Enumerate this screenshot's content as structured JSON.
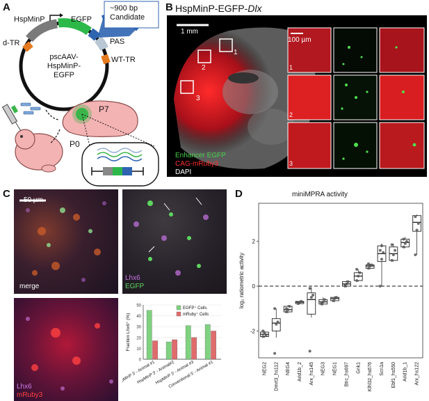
{
  "panels": {
    "A": {
      "label": "A",
      "promoter": "HspMinP",
      "reporter": "EGFP",
      "left_itr": "d-TR",
      "right_itr": "WT-TR",
      "polyA": "PAS",
      "plasmid_lines": [
        "pscAAV-",
        "HspMinP-",
        "EGFP"
      ],
      "candidate_lines": [
        "~900 bp",
        "Candidate"
      ],
      "stage_p0": "P0",
      "stage_p7": "P7",
      "colors": {
        "promoter": "#7a7a7a",
        "reporter": "#2db84a",
        "candidate": "#2f64b0",
        "itr": "#e67a1e",
        "pas": "#b8c7d3"
      }
    },
    "B": {
      "label": "B",
      "title_prefix": "HspMinP-EGFP-",
      "title_italic": "Dlx",
      "scalebar_main": "1 mm",
      "scalebar_inset": "100 µm",
      "roi_labels": [
        "1",
        "2",
        "3"
      ],
      "legend": [
        "Enhancer EGFP",
        "CAG-mRuby3",
        "DAPI"
      ],
      "legend_colors": [
        "#48d048",
        "#ff3030",
        "#ffffff"
      ]
    },
    "C": {
      "label": "C",
      "scalebar": "50 µm",
      "merge_label": "merge",
      "lhx6_label": "Lhx6",
      "egfp_label": "EGFP",
      "mruby_label": "mRuby3",
      "chart_data": {
        "type": "bar",
        "categories": [
          "HspMinP 3' - Animal #1",
          "HspMinP 3' - Animal#2",
          "HspMinP 3' - Animal #3",
          "Conventional 5' - Animal #1"
        ],
        "series": [
          {
            "name": "EGFP⁺ Cells",
            "values": [
              45,
              16,
              31,
              32
            ],
            "color": "#7fd27f"
          },
          {
            "name": "mRuby⁺ Cells",
            "values": [
              17,
              18,
              20,
              26
            ],
            "color": "#e06b6b"
          }
        ],
        "ylabel": "Fraction Lhx6⁺ (%)",
        "ylim": [
          0,
          50
        ],
        "yticks": [
          0,
          10,
          20,
          30,
          40,
          50
        ]
      }
    },
    "D": {
      "label": "D",
      "chart_data": {
        "type": "box",
        "title": "miniMPRA activity",
        "ylabel": "log₂ ratiometric activity",
        "ylim": [
          -3.2,
          3.7
        ],
        "yticks": [
          -2,
          0,
          2
        ],
        "categories": [
          "NEG2",
          "Dmrt3_hs112",
          "NEG4",
          "Arid1b_2",
          "Arx_hs145",
          "NEG3",
          "NEG1",
          "Btrc_hs697",
          "Gnk1",
          "Klhl32_hs676",
          "Scn1a",
          "Ebf1_hs550",
          "Arid1b_1",
          "Arx_hs122"
        ],
        "boxes": [
          {
            "q1": -2.25,
            "median": -2.15,
            "q3": -2.05,
            "whisker_low": -2.3,
            "whisker_high": -2.0,
            "points": [
              -2.25,
              -2.1,
              -2.2,
              -2.0
            ]
          },
          {
            "q1": -2.0,
            "median": -1.65,
            "q3": -1.45,
            "whisker_low": -2.3,
            "whisker_high": -1.0,
            "points": [
              -3.0,
              -1.7,
              -1.6,
              -1.0
            ]
          },
          {
            "q1": -1.15,
            "median": -1.05,
            "q3": -0.9,
            "whisker_low": -1.2,
            "whisker_high": -0.85,
            "points": [
              -1.15,
              -1.05,
              -0.9,
              -1.0
            ]
          },
          {
            "q1": -0.78,
            "median": -0.72,
            "q3": -0.68,
            "whisker_low": -0.8,
            "whisker_high": -0.65,
            "points": [
              -0.78,
              -0.72,
              -0.68
            ]
          },
          {
            "q1": -1.25,
            "median": -0.6,
            "q3": -0.3,
            "whisker_low": -1.4,
            "whisker_high": -0.05,
            "points": [
              -2.9,
              -0.5,
              -0.4,
              -0.1
            ]
          },
          {
            "q1": -0.8,
            "median": -0.7,
            "q3": -0.6,
            "whisker_low": -0.85,
            "whisker_high": -0.5,
            "points": [
              -0.8,
              -0.7,
              -0.6,
              -0.75
            ]
          },
          {
            "q1": -0.65,
            "median": -0.55,
            "q3": -0.5,
            "whisker_low": -0.7,
            "whisker_high": -0.45,
            "points": [
              -0.65,
              -0.55,
              -0.5
            ]
          },
          {
            "q1": 0.0,
            "median": 0.1,
            "q3": 0.2,
            "whisker_low": -0.05,
            "whisker_high": 0.25,
            "points": [
              0.0,
              0.1,
              0.2,
              0.05
            ]
          },
          {
            "q1": 0.25,
            "median": 0.45,
            "q3": 0.6,
            "whisker_low": 0.2,
            "whisker_high": 0.75,
            "points": [
              0.25,
              0.45,
              0.6,
              0.75
            ]
          },
          {
            "q1": 0.8,
            "median": 0.9,
            "q3": 0.95,
            "whisker_low": 0.75,
            "whisker_high": 1.0,
            "points": [
              0.8,
              0.9,
              0.95,
              1.0
            ]
          },
          {
            "q1": 1.1,
            "median": 1.45,
            "q3": 1.8,
            "whisker_low": 0.0,
            "whisker_high": 1.9,
            "points": [
              0.0,
              1.2,
              1.5,
              1.6,
              1.8
            ]
          },
          {
            "q1": 1.15,
            "median": 1.45,
            "q3": 1.75,
            "whisker_low": 1.1,
            "whisker_high": 1.9,
            "points": [
              1.15,
              1.4,
              1.6,
              1.85
            ]
          },
          {
            "q1": 1.75,
            "median": 1.95,
            "q3": 2.1,
            "whisker_low": 1.7,
            "whisker_high": 2.2,
            "points": [
              1.75,
              1.9,
              2.0,
              2.1
            ]
          },
          {
            "q1": 2.45,
            "median": 2.85,
            "q3": 3.15,
            "whisker_low": 1.4,
            "whisker_high": 3.2,
            "points": [
              1.4,
              2.5,
              2.8,
              3.1
            ]
          }
        ],
        "reference_line": 0
      }
    }
  }
}
